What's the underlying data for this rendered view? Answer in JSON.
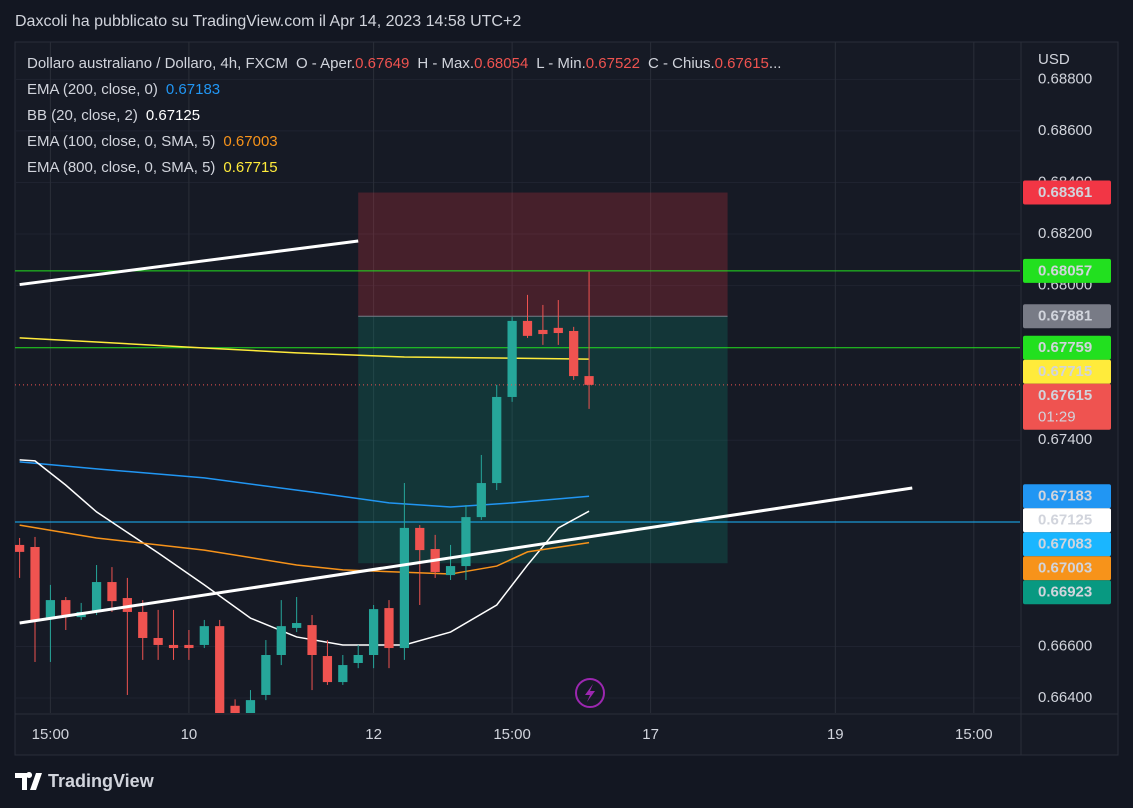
{
  "header": {
    "text": "Daxcoli ha pubblicato su TradingView.com il Apr 14, 2023 14:58 UTC+2"
  },
  "chart_data": {
    "type": "candlestick",
    "title": "Dollaro australiano / Dollaro, 4h, FXCM",
    "ohlc_labels": [
      "O - Aper.",
      "H - Max.",
      "L - Min.",
      "C - Chius."
    ],
    "title_ellipsis": "...",
    "up_color": "#26a69a",
    "down_color": "#ef5350",
    "x": [
      0,
      1,
      2,
      3,
      4,
      5,
      6,
      7,
      8,
      9,
      10,
      11,
      12,
      13,
      14,
      15,
      16,
      17,
      18,
      19,
      20,
      21,
      22,
      23,
      24,
      25,
      26,
      27,
      28,
      29,
      30,
      31,
      32,
      33,
      34,
      35,
      36,
      37
    ],
    "open": [
      0.66994,
      0.66986,
      0.6671,
      0.6678,
      0.66714,
      0.66734,
      0.6685,
      0.66788,
      0.66734,
      0.66633,
      0.66606,
      0.66606,
      0.66606,
      0.66679,
      0.6637,
      0.663,
      0.66412,
      0.66567,
      0.66672,
      0.66683,
      0.66563,
      0.66462,
      0.66536,
      0.66567,
      0.66749,
      0.66594,
      0.6706,
      0.66978,
      0.66877,
      0.66912,
      0.67102,
      0.67234,
      0.67568,
      0.67863,
      0.67828,
      0.67836,
      0.67824,
      0.67649
    ],
    "high": [
      0.67021,
      0.67025,
      0.66839,
      0.66792,
      0.66769,
      0.66916,
      0.66908,
      0.66866,
      0.6678,
      0.66742,
      0.66742,
      0.66664,
      0.66703,
      0.66703,
      0.66395,
      0.66431,
      0.66625,
      0.6678,
      0.66792,
      0.66722,
      0.66625,
      0.66567,
      0.66606,
      0.66761,
      0.6678,
      0.67234,
      0.67071,
      0.67033,
      0.66994,
      0.67149,
      0.67343,
      0.67615,
      0.67878,
      0.67964,
      0.67925,
      0.67944,
      0.6784,
      0.68054
    ],
    "low": [
      0.66866,
      0.6654,
      0.6654,
      0.66664,
      0.66703,
      0.66722,
      0.66734,
      0.66412,
      0.66548,
      0.66548,
      0.66548,
      0.66548,
      0.66594,
      0.66276,
      0.6625,
      0.6625,
      0.66392,
      0.66528,
      0.66656,
      0.66431,
      0.66451,
      0.66451,
      0.66516,
      0.66516,
      0.66516,
      0.66548,
      0.66761,
      0.66866,
      0.66858,
      0.66858,
      0.67091,
      0.67207,
      0.67549,
      0.67797,
      0.6777,
      0.6777,
      0.67634,
      0.67522
    ],
    "close": [
      0.66967,
      0.66703,
      0.6678,
      0.66722,
      0.66734,
      0.6685,
      0.66776,
      0.66734,
      0.66633,
      0.66606,
      0.66594,
      0.66594,
      0.66679,
      0.66315,
      0.663,
      0.66392,
      0.66567,
      0.66679,
      0.66691,
      0.66567,
      0.66462,
      0.66528,
      0.66567,
      0.66745,
      0.66594,
      0.6706,
      0.66974,
      0.66889,
      0.66912,
      0.67102,
      0.67234,
      0.67568,
      0.67863,
      0.67805,
      0.67812,
      0.67816,
      0.67649,
      0.67615
    ],
    "indicators": [
      {
        "name": "EMA (200, close, 0)",
        "color": "#2196f3",
        "x": [
          0,
          5,
          12,
          19,
          24,
          28,
          32,
          37
        ],
        "values": [
          0.67316,
          0.67289,
          0.67254,
          0.67199,
          0.67157,
          0.67141,
          0.67157,
          0.67183
        ]
      },
      {
        "name": "BB (20, close, 2)",
        "color": "#ffffff",
        "x": [
          0,
          1,
          3,
          5,
          9,
          12,
          15,
          18,
          21,
          25,
          28,
          31,
          33,
          35,
          37
        ],
        "values": [
          0.67324,
          0.6732,
          0.67226,
          0.67122,
          0.66963,
          0.66839,
          0.6671,
          0.66637,
          0.66606,
          0.66606,
          0.66656,
          0.66761,
          0.66916,
          0.6706,
          0.67125
        ]
      },
      {
        "name": "EMA (100, close, 0, SMA, 5)",
        "color": "#f7931a",
        "x": [
          0,
          5,
          12,
          18,
          21,
          28,
          31,
          33,
          37
        ],
        "values": [
          0.67071,
          0.67021,
          0.66974,
          0.66916,
          0.66897,
          0.66881,
          0.66912,
          0.66967,
          0.67003
        ]
      },
      {
        "name": "EMA (800, close, 0, SMA, 5)",
        "color": "#ffeb3b",
        "x": [
          0,
          5,
          12,
          18,
          25,
          31,
          37
        ],
        "values": [
          0.67797,
          0.67781,
          0.67758,
          0.67739,
          0.67723,
          0.67719,
          0.67715
        ]
      }
    ],
    "hlines": [
      {
        "value": 0.68057,
        "color": "#22e01f"
      },
      {
        "value": 0.67759,
        "color": "#22e01f"
      },
      {
        "value": 0.67083,
        "color": "#1ab6ff"
      }
    ],
    "trendlines": [
      {
        "x": [
          0,
          22
        ],
        "values": [
          0.68004,
          0.68173
        ]
      },
      {
        "x": [
          0,
          58
        ],
        "values": [
          0.66691,
          0.67215
        ]
      }
    ],
    "position": {
      "x": [
        22,
        46
      ],
      "stop": 0.68361,
      "entry": 0.67881,
      "target": 0.66923,
      "stop_color": "#f23645",
      "entry_color": "#787b86",
      "target_color": "#089981"
    },
    "countdown": "01:29",
    "y_axis_label": "USD",
    "xlim": [
      -0.3,
      65
    ],
    "ylim": [
      0.66342,
      0.68945
    ],
    "xticks": [
      {
        "value": 2,
        "label": "15:00"
      },
      {
        "value": 11,
        "label": "10"
      },
      {
        "value": 23,
        "label": "12"
      },
      {
        "value": 32,
        "label": "15:00"
      },
      {
        "value": 41,
        "label": "17"
      },
      {
        "value": 53,
        "label": "19"
      },
      {
        "value": 62,
        "label": "15:00"
      }
    ],
    "yticks": [
      {
        "value": 0.688,
        "label": "0.68800"
      },
      {
        "value": 0.686,
        "label": "0.68600"
      },
      {
        "value": 0.684,
        "label": "0.68400"
      },
      {
        "value": 0.682,
        "label": "0.68200"
      },
      {
        "value": 0.68,
        "label": "0.68000"
      },
      {
        "value": 0.674,
        "label": "0.67400"
      },
      {
        "value": 0.666,
        "label": "0.66600"
      },
      {
        "value": 0.664,
        "label": "0.66400"
      }
    ],
    "grid": true
  },
  "footer": {
    "brand": "TradingView"
  }
}
